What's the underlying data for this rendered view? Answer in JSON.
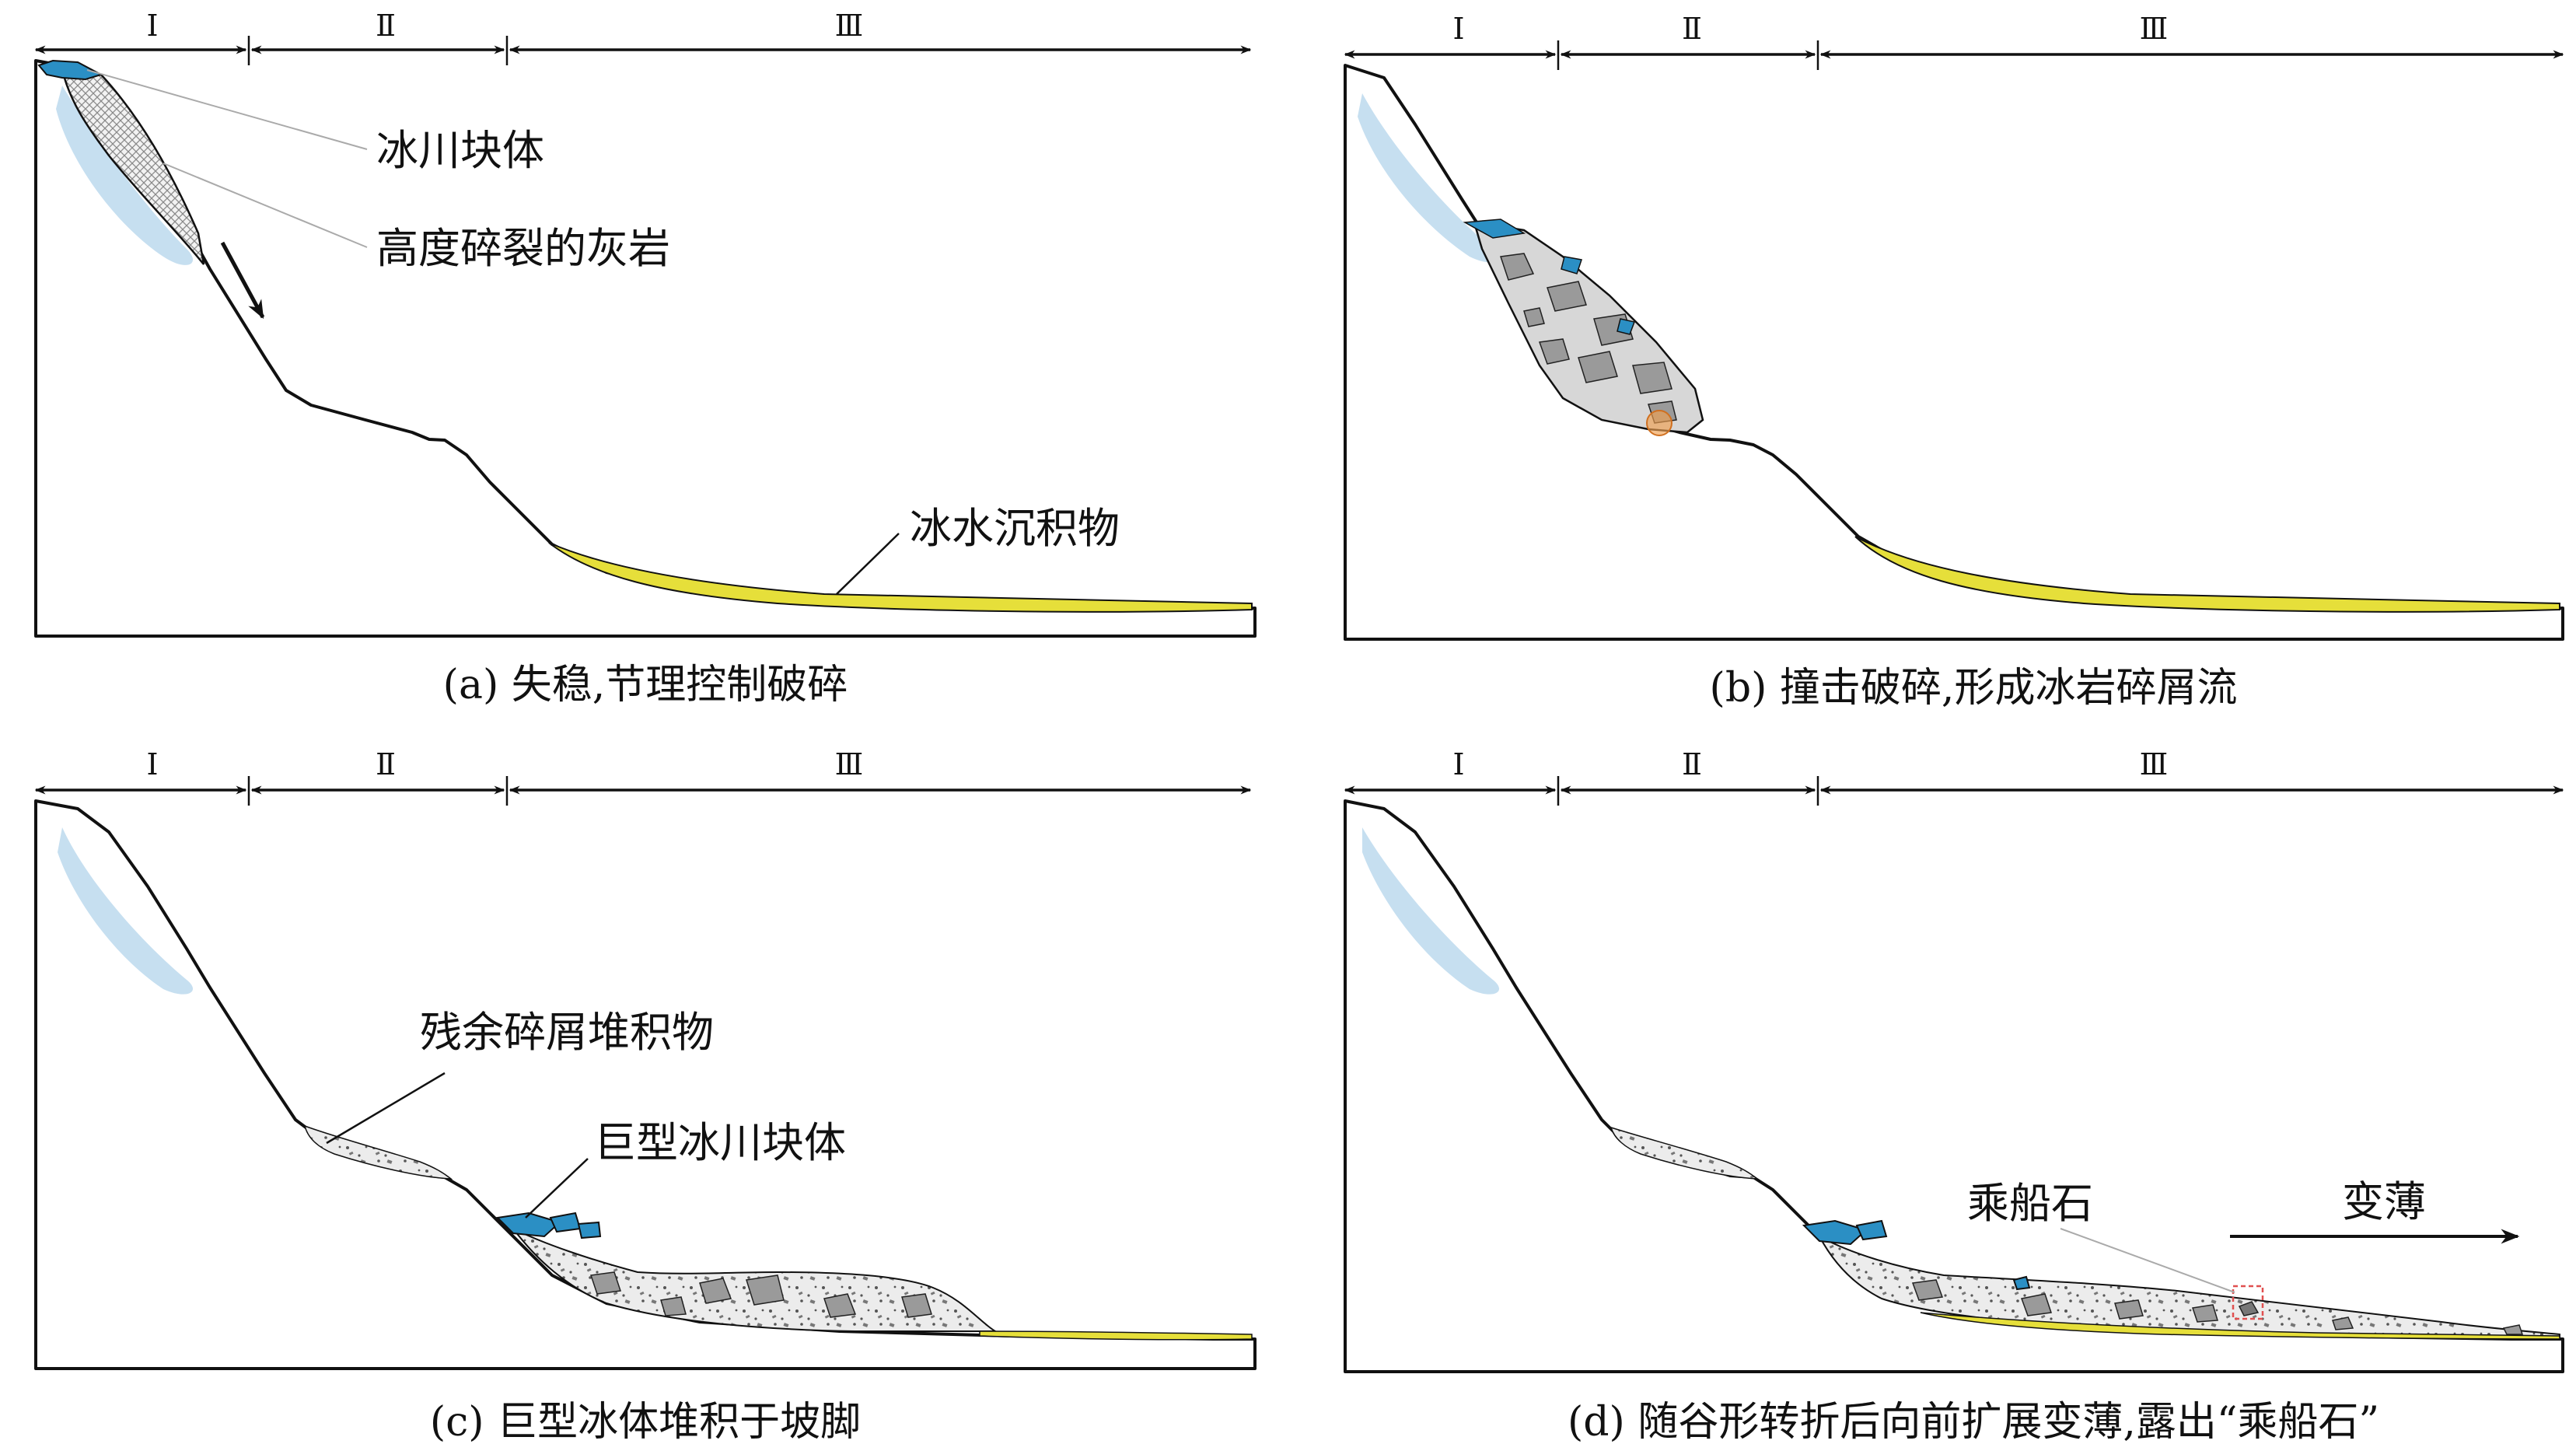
{
  "zones": {
    "z1": "Ⅰ",
    "z2": "Ⅱ",
    "z3": "Ⅲ"
  },
  "panels": {
    "a": {
      "caption": "(a) 失稳,节理控制破碎",
      "labels": {
        "glacier_block": "冰川块体",
        "fractured_limestone": "高度碎裂的灰岩",
        "outwash": "冰水沉积物"
      }
    },
    "b": {
      "caption": "(b) 撞击破碎,形成冰岩碎屑流"
    },
    "c": {
      "caption": "(c) 巨型冰体堆积于坡脚",
      "labels": {
        "residual_debris": "残余碎屑堆积物",
        "giant_glacier_block": "巨型冰川块体"
      }
    },
    "d": {
      "caption": "(d) 随谷形转折后向前扩展变薄,露出“乘船石”",
      "labels": {
        "boat_stone": "乘船石",
        "thinning": "变薄"
      }
    }
  },
  "colors": {
    "ice_light": "#c6dff0",
    "ice_block": "#2b8fc4",
    "outwash_yellow": "#e6df3a",
    "debris_fill": "#e9e9e9",
    "rock_fragment": "#9a9a9a",
    "impact_marker": "#f0a050",
    "boat_stone_box": "#e05050"
  },
  "icons": [
    "arrow-right-icon",
    "arrow-left-icon",
    "slide-direction-arrow-icon"
  ]
}
